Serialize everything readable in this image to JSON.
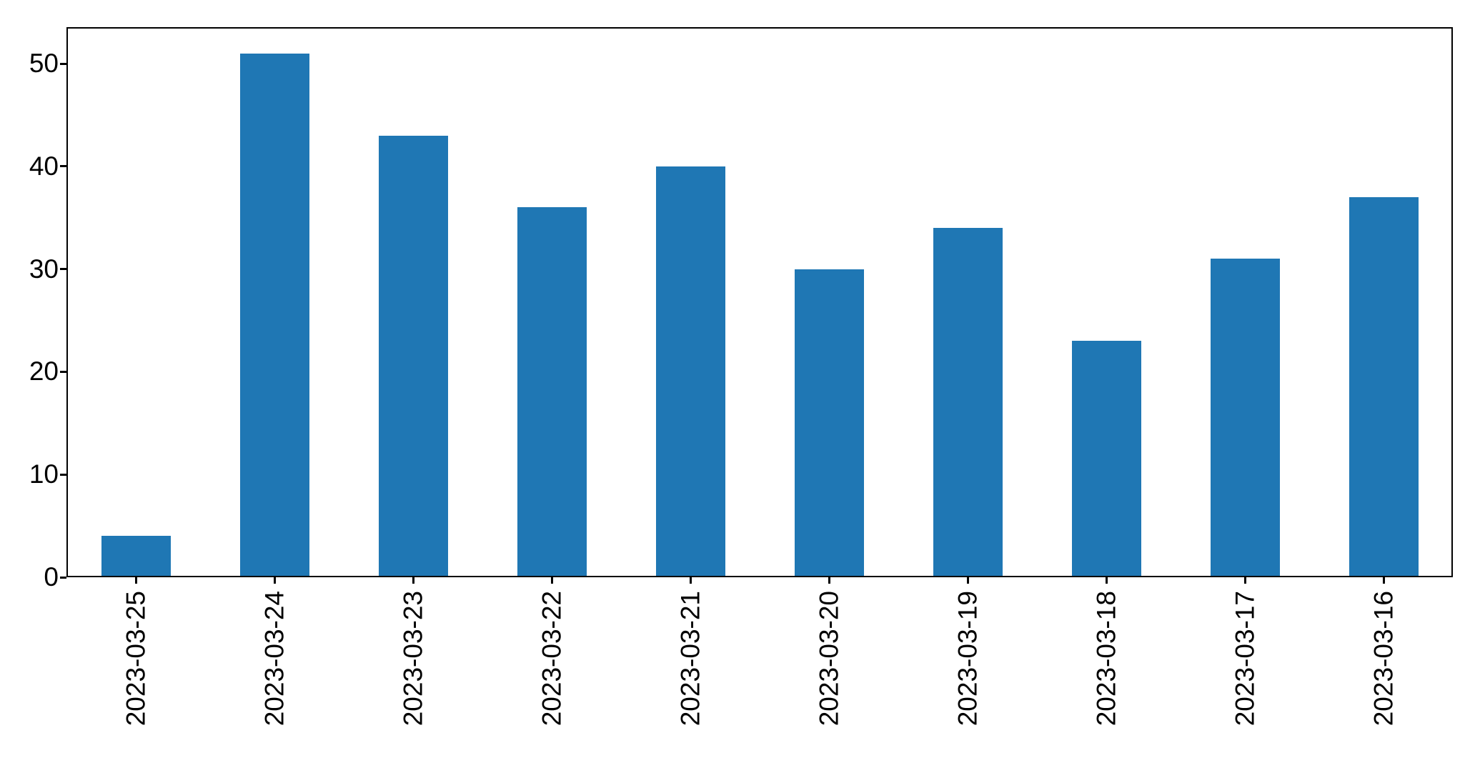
{
  "chart_data": {
    "type": "bar",
    "categories": [
      "2023-03-25",
      "2023-03-24",
      "2023-03-23",
      "2023-03-22",
      "2023-03-21",
      "2023-03-20",
      "2023-03-19",
      "2023-03-18",
      "2023-03-17",
      "2023-03-16"
    ],
    "values": [
      4,
      51,
      43,
      36,
      40,
      30,
      34,
      23,
      31,
      37
    ],
    "title": "",
    "xlabel": "",
    "ylabel": "",
    "ylim": [
      0,
      53.55
    ],
    "yticks": [
      0,
      10,
      20,
      30,
      40,
      50
    ],
    "xtick_label_rotation_deg": 90,
    "grid": false,
    "legend_visible": false,
    "bar_width_fraction": 0.5,
    "colors": {
      "bar": "#1f77b4",
      "axis": "#000000",
      "tick_label": "#000000",
      "background": "#ffffff"
    }
  }
}
